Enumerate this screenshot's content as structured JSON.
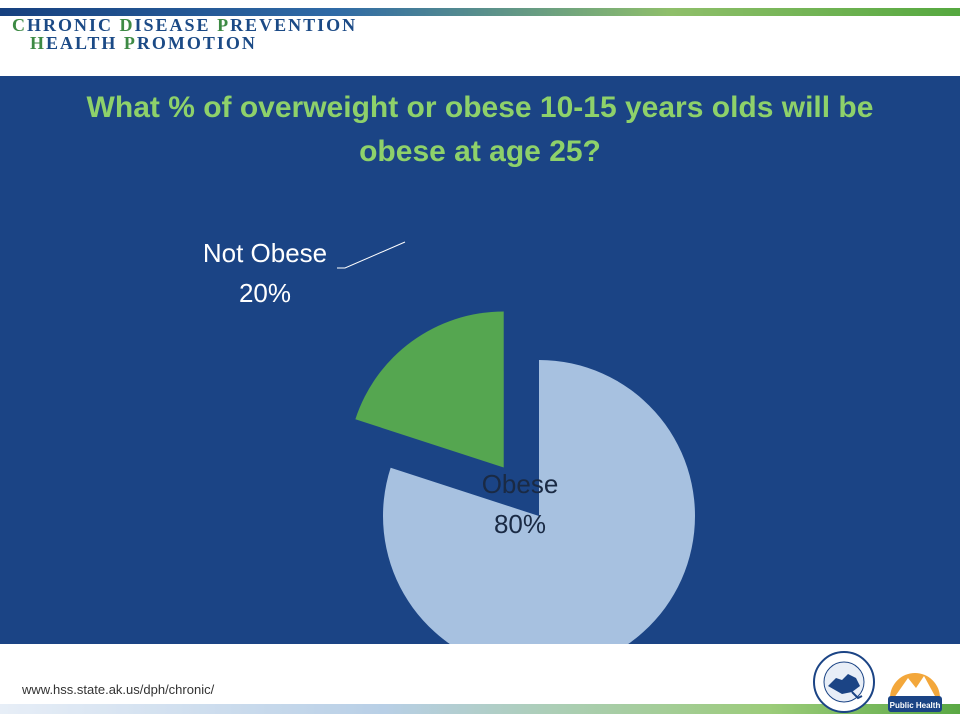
{
  "header": {
    "brand_line1_initial": "C",
    "brand_line1_rest": "HRONIC ",
    "brand_line1_word2_initial": "D",
    "brand_line1_word2_rest": "ISEASE ",
    "brand_line1_word3_initial": "P",
    "brand_line1_word3_rest": "REVENTION",
    "brand_line2_initial": "H",
    "brand_line2_rest": "EALTH ",
    "brand_line2_word2_initial": "P",
    "brand_line2_word2_rest": "ROMOTION"
  },
  "chart_data": {
    "type": "pie",
    "title": "What % of overweight or obese 10-15 years olds will be obese at age 25?",
    "slices": [
      {
        "name": "Obese",
        "value": 80,
        "label": "80%",
        "color": "#a7c1e0"
      },
      {
        "name": "Not Obese",
        "value": 20,
        "label": "20%",
        "color": "#55a650"
      }
    ],
    "exploded": "Not Obese"
  },
  "footer": {
    "url": "www.hss.state.ak.us/dph/chronic/",
    "logo1_text": "STATE of ALASKA",
    "logo2_text": "Public Health"
  },
  "colors": {
    "background": "#1b4485",
    "title": "#8ed16a"
  }
}
